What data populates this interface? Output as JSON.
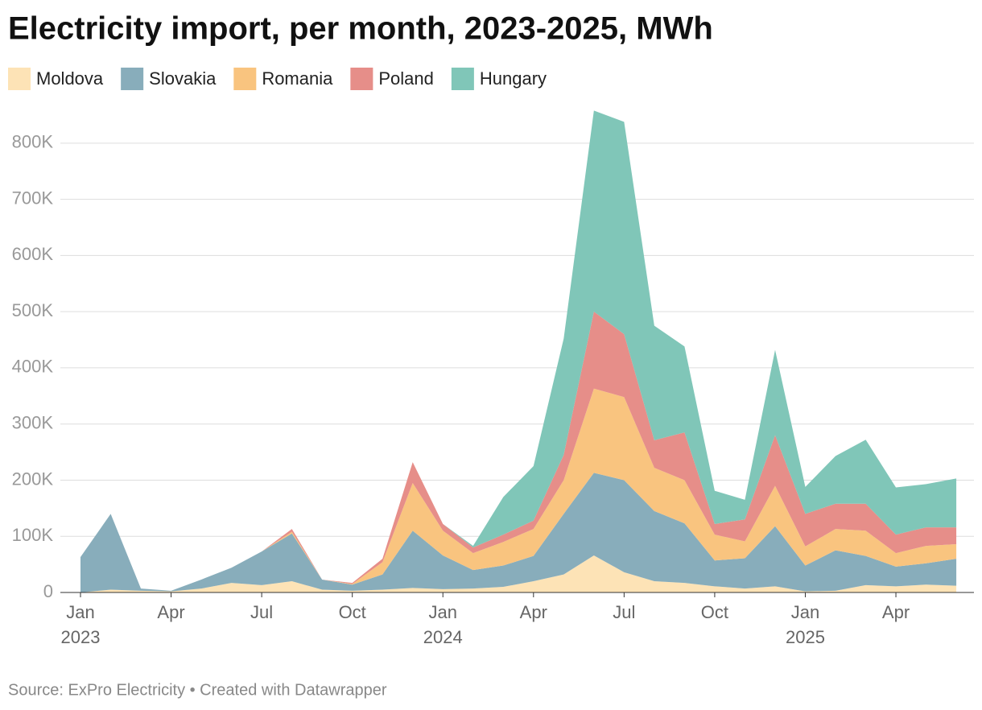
{
  "chart_data": {
    "type": "stacked_area",
    "title": "Electricity import, per month, 2023-2025, MWh",
    "source": "Source: ExPro Electricity • Created with Datawrapper",
    "categories": [
      "Jan 2023",
      null,
      null,
      "Apr",
      null,
      null,
      "Jul",
      null,
      null,
      "Oct",
      null,
      null,
      "Jan 2024",
      null,
      null,
      "Apr",
      null,
      null,
      "Jul",
      null,
      null,
      "Oct",
      null,
      null,
      "Jan 2025",
      null,
      null,
      "Apr",
      null,
      null
    ],
    "series": [
      {
        "name": "Moldova",
        "color": "#fde3b6",
        "values": [
          0,
          5000,
          3000,
          2000,
          7000,
          17000,
          13000,
          20000,
          5000,
          3000,
          5000,
          8000,
          6000,
          7000,
          10000,
          20000,
          32000,
          66000,
          36000,
          20000,
          17000,
          11000,
          7000,
          11000,
          2000,
          3000,
          13000,
          11000,
          14000,
          12000
        ]
      },
      {
        "name": "Slovakia",
        "color": "#88adbb",
        "values": [
          63000,
          135000,
          4000,
          1000,
          16000,
          27000,
          60000,
          85000,
          18000,
          11000,
          27000,
          102000,
          60000,
          33000,
          38000,
          45000,
          108000,
          147000,
          164000,
          125000,
          106000,
          46000,
          54000,
          107000,
          46000,
          72000,
          52000,
          35000,
          38000,
          48000
        ]
      },
      {
        "name": "Romania",
        "color": "#f9c47f",
        "values": [
          0,
          0,
          0,
          0,
          0,
          0,
          0,
          3000,
          0,
          1000,
          22000,
          85000,
          44000,
          30000,
          42000,
          48000,
          60000,
          150000,
          148000,
          77000,
          77000,
          46000,
          30000,
          72000,
          34000,
          38000,
          45000,
          24000,
          31000,
          26000
        ]
      },
      {
        "name": "Poland",
        "color": "#e68e89",
        "values": [
          0,
          0,
          0,
          0,
          0,
          0,
          0,
          5000,
          0,
          2000,
          6000,
          37000,
          12000,
          10000,
          13000,
          15000,
          45000,
          137000,
          112000,
          49000,
          85000,
          19000,
          39000,
          90000,
          58000,
          45000,
          48000,
          33000,
          33000,
          30000
        ]
      },
      {
        "name": "Hungary",
        "color": "#80c6b8",
        "values": [
          0,
          0,
          0,
          0,
          0,
          0,
          0,
          0,
          0,
          0,
          0,
          0,
          0,
          3000,
          67000,
          97000,
          207000,
          358000,
          378000,
          204000,
          153000,
          59000,
          35000,
          152000,
          48000,
          85000,
          114000,
          84000,
          77000,
          87000
        ]
      }
    ],
    "ylim": [
      0,
      860000
    ],
    "yticks": [
      0,
      {
        "value": 100000,
        "label": "100K"
      },
      {
        "value": 200000,
        "label": "200K"
      },
      {
        "value": 300000,
        "label": "300K"
      },
      {
        "value": 400000,
        "label": "400K"
      },
      {
        "value": 500000,
        "label": "500K"
      },
      {
        "value": 600000,
        "label": "600K"
      },
      {
        "value": 700000,
        "label": "700K"
      },
      {
        "value": 800000,
        "label": "800K"
      }
    ],
    "grid": true
  }
}
